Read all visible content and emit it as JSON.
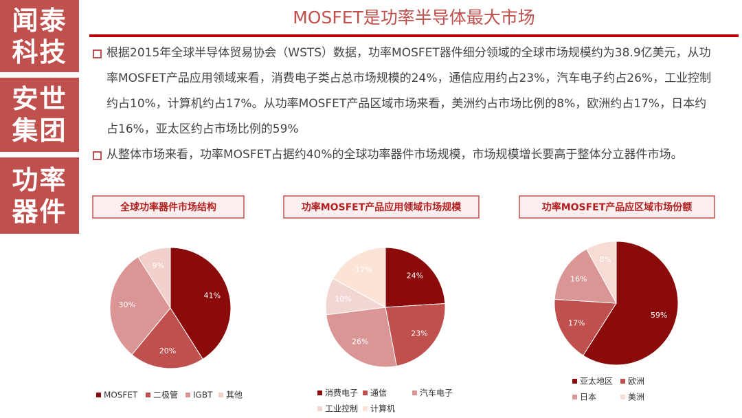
{
  "sidebar": [
    [
      "闻泰",
      "科技"
    ],
    [
      "安世",
      "集团"
    ],
    [
      "功率",
      "器件"
    ]
  ],
  "header": {
    "title": "MOSFET是功率半导体最大市场"
  },
  "bullets": [
    "根据2015年全球半导体贸易协会（WSTS）数据，功率MOSFET器件细分领域的全球市场规模约为38.9亿美元，从功率MOSFET产品应用领域来看，消费电子类占总市场规模的24%，通信应用约占23%，汽车电子约占26%，工业控制约占10%，计算机约占17%。从功率MOSFET产品区域市场来看，美洲约占市场比例的8%，欧洲约占17%，日本约占16%，亚太区约占市场比例的59%",
    "从整体市场来看，功率MOSFET占据约40%的全球功率器件市场规模，市场规模增长要高于整体分立器件市场。"
  ],
  "chart_data": [
    {
      "type": "pie",
      "title": "全球功率器件市场结构",
      "categories": [
        "MOSFET",
        "二极管",
        "IGBT",
        "其他"
      ],
      "values": [
        41,
        20,
        30,
        9
      ],
      "value_labels": [
        "41%",
        "20%",
        "30%",
        "9%"
      ],
      "colors": [
        "#8b0a0a",
        "#c0504d",
        "#d99694",
        "#f2d0cb"
      ]
    },
    {
      "type": "pie",
      "title": "功率MOSFET产品应用领域市场规模",
      "categories": [
        "消费电子",
        "通信",
        "汽车电子",
        "工业控制",
        "计算机"
      ],
      "values": [
        24,
        23,
        26,
        10,
        17
      ],
      "value_labels": [
        "24%",
        "23%",
        "26%",
        "10%",
        "17%"
      ],
      "colors": [
        "#8b0a0a",
        "#c0504d",
        "#d99694",
        "#f2d6d4",
        "#fbe4d6"
      ]
    },
    {
      "type": "pie",
      "title": "功率MOSFET产品应区域市场份额",
      "categories": [
        "亚太地区",
        "欧洲",
        "日本",
        "美洲"
      ],
      "values": [
        59,
        17,
        16,
        8
      ],
      "value_labels": [
        "59%",
        "17%",
        "16%",
        "8%"
      ],
      "colors": [
        "#8b0a0a",
        "#c0504d",
        "#d99694",
        "#f6dcd4"
      ]
    }
  ]
}
